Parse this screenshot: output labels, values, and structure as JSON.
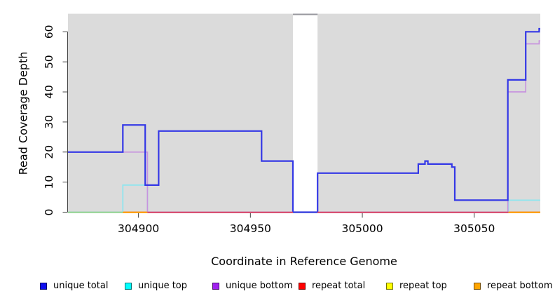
{
  "figure": {
    "background": "#FFFFFF",
    "panel_background": "#DBDBDB"
  },
  "legend": {
    "position": "bottom",
    "items": [
      {
        "label": "unique total",
        "color": "#0F0FEF"
      },
      {
        "label": "unique top",
        "color": "#00FFFF"
      },
      {
        "label": "unique bottom",
        "color": "#A020F0"
      },
      {
        "label": "repeat total",
        "color": "#FF0000"
      },
      {
        "label": "repeat top",
        "color": "#FFFF00"
      },
      {
        "label": "repeat bottom",
        "color": "#FFA500"
      }
    ]
  },
  "chart_data": {
    "type": "line",
    "subtype": "step",
    "title": "",
    "xlabel": "Coordinate in Reference Genome",
    "ylabel": "Read Coverage Depth",
    "xlim": [
      304868.5,
      305079.5
    ],
    "ylim": [
      0,
      66
    ],
    "x_ticks": [
      304900,
      304950,
      305000,
      305050
    ],
    "y_ticks": [
      0,
      10,
      20,
      30,
      40,
      50,
      60
    ],
    "grid": false,
    "legend_position": "bottom",
    "masked_region": {
      "from": 304969,
      "to": 304980
    },
    "series": [
      {
        "name": "unique total",
        "legend_color": "#0F0FEF",
        "line_color": "#3438E6",
        "width": 2.2,
        "z": 6,
        "steps": [
          [
            304868.5,
            20
          ],
          [
            304893,
            29
          ],
          [
            304903,
            9
          ],
          [
            304909,
            27
          ],
          [
            304955,
            17
          ],
          [
            304969,
            0
          ],
          [
            304980,
            13
          ],
          [
            305025,
            16
          ],
          [
            305028,
            17
          ],
          [
            305029.3,
            16
          ],
          [
            305040,
            15
          ],
          [
            305041.3,
            4
          ],
          [
            305065,
            44
          ],
          [
            305073,
            60
          ],
          [
            305079,
            61
          ]
        ]
      },
      {
        "name": "unique top",
        "legend_color": "#00FFFF",
        "line_color": "#8CE6EF",
        "width": 1.7,
        "z": 4,
        "steps": [
          [
            304868.5,
            0
          ],
          [
            304893,
            9
          ],
          [
            304904,
            0
          ],
          [
            305065.3,
            4
          ]
        ]
      },
      {
        "name": "unique bottom",
        "legend_color": "#A020F0",
        "line_color": "#C794DE",
        "width": 1.7,
        "z": 5,
        "steps": [
          [
            304868.5,
            20
          ],
          [
            304904,
            0
          ],
          [
            305065,
            40
          ],
          [
            305073,
            56
          ],
          [
            305079,
            57
          ]
        ]
      },
      {
        "name": "repeat total",
        "legend_color": "#FF0000",
        "line_color": "#D84F72",
        "width": 1.6,
        "z": 3,
        "steps": [
          [
            304868.5,
            0
          ]
        ]
      },
      {
        "name": "repeat top",
        "legend_color": "#FFFF00",
        "line_color": "#FFFF00",
        "width": 1.6,
        "z": 1,
        "steps": [
          [
            304868.5,
            0
          ]
        ]
      },
      {
        "name": "repeat bottom",
        "legend_color": "#FFA500",
        "line_color": "#FFA012",
        "width": 1.6,
        "z": 2,
        "steps": [
          [
            304868.5,
            0
          ]
        ]
      }
    ],
    "baseline_render_segments": [
      {
        "from": 304868.5,
        "to": 304893,
        "color": "#9CD69C"
      },
      {
        "from": 304893,
        "to": 304904,
        "color": "#FFA012"
      },
      {
        "from": 304904,
        "to": 304969,
        "color": "#D84F72"
      },
      {
        "from": 304969,
        "to": 304980,
        "color": "#4A52E0"
      },
      {
        "from": 304980,
        "to": 305065.3,
        "color": "#D84F72"
      },
      {
        "from": 305065.3,
        "to": 305079.5,
        "color": "#FFA012"
      }
    ]
  }
}
